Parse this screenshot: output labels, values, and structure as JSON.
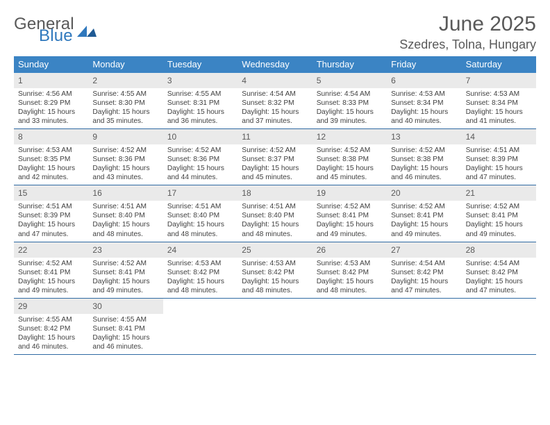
{
  "logo": {
    "text_top": "General",
    "text_bottom": "Blue",
    "color_gray": "#595959",
    "color_blue": "#2f78bd"
  },
  "title": "June 2025",
  "subtitle": "Szedres, Tolna, Hungary",
  "colors": {
    "header_bg": "#3b84c4",
    "header_text": "#ffffff",
    "daynum_bg": "#eaeaea",
    "week_border": "#2f6aa3",
    "body_text": "#404040"
  },
  "days_of_week": [
    "Sunday",
    "Monday",
    "Tuesday",
    "Wednesday",
    "Thursday",
    "Friday",
    "Saturday"
  ],
  "weeks": [
    [
      {
        "n": "1",
        "sr": "Sunrise: 4:56 AM",
        "ss": "Sunset: 8:29 PM",
        "d1": "Daylight: 15 hours",
        "d2": "and 33 minutes."
      },
      {
        "n": "2",
        "sr": "Sunrise: 4:55 AM",
        "ss": "Sunset: 8:30 PM",
        "d1": "Daylight: 15 hours",
        "d2": "and 35 minutes."
      },
      {
        "n": "3",
        "sr": "Sunrise: 4:55 AM",
        "ss": "Sunset: 8:31 PM",
        "d1": "Daylight: 15 hours",
        "d2": "and 36 minutes."
      },
      {
        "n": "4",
        "sr": "Sunrise: 4:54 AM",
        "ss": "Sunset: 8:32 PM",
        "d1": "Daylight: 15 hours",
        "d2": "and 37 minutes."
      },
      {
        "n": "5",
        "sr": "Sunrise: 4:54 AM",
        "ss": "Sunset: 8:33 PM",
        "d1": "Daylight: 15 hours",
        "d2": "and 39 minutes."
      },
      {
        "n": "6",
        "sr": "Sunrise: 4:53 AM",
        "ss": "Sunset: 8:34 PM",
        "d1": "Daylight: 15 hours",
        "d2": "and 40 minutes."
      },
      {
        "n": "7",
        "sr": "Sunrise: 4:53 AM",
        "ss": "Sunset: 8:34 PM",
        "d1": "Daylight: 15 hours",
        "d2": "and 41 minutes."
      }
    ],
    [
      {
        "n": "8",
        "sr": "Sunrise: 4:53 AM",
        "ss": "Sunset: 8:35 PM",
        "d1": "Daylight: 15 hours",
        "d2": "and 42 minutes."
      },
      {
        "n": "9",
        "sr": "Sunrise: 4:52 AM",
        "ss": "Sunset: 8:36 PM",
        "d1": "Daylight: 15 hours",
        "d2": "and 43 minutes."
      },
      {
        "n": "10",
        "sr": "Sunrise: 4:52 AM",
        "ss": "Sunset: 8:36 PM",
        "d1": "Daylight: 15 hours",
        "d2": "and 44 minutes."
      },
      {
        "n": "11",
        "sr": "Sunrise: 4:52 AM",
        "ss": "Sunset: 8:37 PM",
        "d1": "Daylight: 15 hours",
        "d2": "and 45 minutes."
      },
      {
        "n": "12",
        "sr": "Sunrise: 4:52 AM",
        "ss": "Sunset: 8:38 PM",
        "d1": "Daylight: 15 hours",
        "d2": "and 45 minutes."
      },
      {
        "n": "13",
        "sr": "Sunrise: 4:52 AM",
        "ss": "Sunset: 8:38 PM",
        "d1": "Daylight: 15 hours",
        "d2": "and 46 minutes."
      },
      {
        "n": "14",
        "sr": "Sunrise: 4:51 AM",
        "ss": "Sunset: 8:39 PM",
        "d1": "Daylight: 15 hours",
        "d2": "and 47 minutes."
      }
    ],
    [
      {
        "n": "15",
        "sr": "Sunrise: 4:51 AM",
        "ss": "Sunset: 8:39 PM",
        "d1": "Daylight: 15 hours",
        "d2": "and 47 minutes."
      },
      {
        "n": "16",
        "sr": "Sunrise: 4:51 AM",
        "ss": "Sunset: 8:40 PM",
        "d1": "Daylight: 15 hours",
        "d2": "and 48 minutes."
      },
      {
        "n": "17",
        "sr": "Sunrise: 4:51 AM",
        "ss": "Sunset: 8:40 PM",
        "d1": "Daylight: 15 hours",
        "d2": "and 48 minutes."
      },
      {
        "n": "18",
        "sr": "Sunrise: 4:51 AM",
        "ss": "Sunset: 8:40 PM",
        "d1": "Daylight: 15 hours",
        "d2": "and 48 minutes."
      },
      {
        "n": "19",
        "sr": "Sunrise: 4:52 AM",
        "ss": "Sunset: 8:41 PM",
        "d1": "Daylight: 15 hours",
        "d2": "and 49 minutes."
      },
      {
        "n": "20",
        "sr": "Sunrise: 4:52 AM",
        "ss": "Sunset: 8:41 PM",
        "d1": "Daylight: 15 hours",
        "d2": "and 49 minutes."
      },
      {
        "n": "21",
        "sr": "Sunrise: 4:52 AM",
        "ss": "Sunset: 8:41 PM",
        "d1": "Daylight: 15 hours",
        "d2": "and 49 minutes."
      }
    ],
    [
      {
        "n": "22",
        "sr": "Sunrise: 4:52 AM",
        "ss": "Sunset: 8:41 PM",
        "d1": "Daylight: 15 hours",
        "d2": "and 49 minutes."
      },
      {
        "n": "23",
        "sr": "Sunrise: 4:52 AM",
        "ss": "Sunset: 8:41 PM",
        "d1": "Daylight: 15 hours",
        "d2": "and 49 minutes."
      },
      {
        "n": "24",
        "sr": "Sunrise: 4:53 AM",
        "ss": "Sunset: 8:42 PM",
        "d1": "Daylight: 15 hours",
        "d2": "and 48 minutes."
      },
      {
        "n": "25",
        "sr": "Sunrise: 4:53 AM",
        "ss": "Sunset: 8:42 PM",
        "d1": "Daylight: 15 hours",
        "d2": "and 48 minutes."
      },
      {
        "n": "26",
        "sr": "Sunrise: 4:53 AM",
        "ss": "Sunset: 8:42 PM",
        "d1": "Daylight: 15 hours",
        "d2": "and 48 minutes."
      },
      {
        "n": "27",
        "sr": "Sunrise: 4:54 AM",
        "ss": "Sunset: 8:42 PM",
        "d1": "Daylight: 15 hours",
        "d2": "and 47 minutes."
      },
      {
        "n": "28",
        "sr": "Sunrise: 4:54 AM",
        "ss": "Sunset: 8:42 PM",
        "d1": "Daylight: 15 hours",
        "d2": "and 47 minutes."
      }
    ],
    [
      {
        "n": "29",
        "sr": "Sunrise: 4:55 AM",
        "ss": "Sunset: 8:42 PM",
        "d1": "Daylight: 15 hours",
        "d2": "and 46 minutes."
      },
      {
        "n": "30",
        "sr": "Sunrise: 4:55 AM",
        "ss": "Sunset: 8:41 PM",
        "d1": "Daylight: 15 hours",
        "d2": "and 46 minutes."
      },
      null,
      null,
      null,
      null,
      null
    ]
  ]
}
